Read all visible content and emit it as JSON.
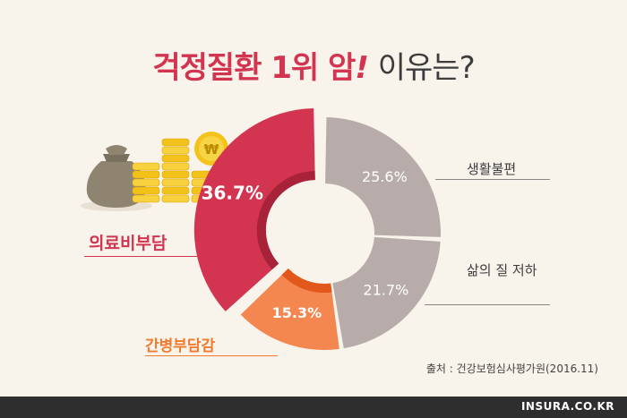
{
  "title": {
    "part_red": "걱정질환 1위 암",
    "part_bang": "!",
    "part_dark": "이유는?"
  },
  "chart_data": {
    "type": "pie",
    "variant": "donut",
    "slices": [
      {
        "label": "의료비부담",
        "value": 36.7,
        "value_label": "36.7%",
        "color": "#d3344f"
      },
      {
        "label": "생활불편",
        "value": 25.6,
        "value_label": "25.6%",
        "color": "#b7acaa"
      },
      {
        "label": "삶의 질 저하",
        "value": 21.7,
        "value_label": "21.7%",
        "color": "#b7acaa"
      },
      {
        "label": "간병부담감",
        "value": 15.3,
        "value_label": "15.3%",
        "color": "#f4864f"
      }
    ]
  },
  "source": "출처 : 건강보험심사평가원(2016.11)",
  "footer": "INSURA.CO.KR",
  "icons": {
    "money_bag": "money-bag-icon",
    "coins": "coin-stacks-icon",
    "won_coin": "won-coin-icon"
  },
  "won_symbol": "₩"
}
